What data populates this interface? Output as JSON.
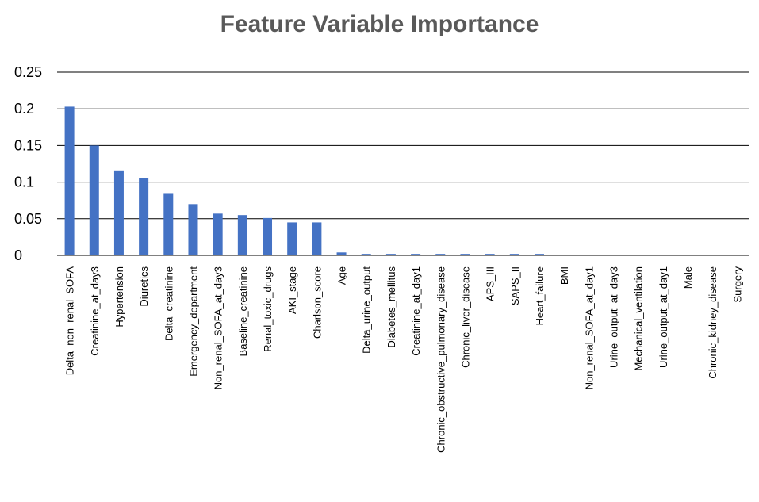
{
  "chart_data": {
    "type": "bar",
    "title": "Feature Variable Importance",
    "xlabel": "",
    "ylabel": "",
    "ylim": [
      0,
      0.25
    ],
    "yticks": [
      "0",
      "0.05",
      "0.1",
      "0.15",
      "0.2",
      "0.25"
    ],
    "grid": true,
    "legend": "none",
    "bar_color": "#4472C4",
    "categories": [
      "Delta_non_renal_SOFA",
      "Creatinine_at_day3",
      "Hypertension",
      "Diuretics",
      "Delta_creatinine",
      "Emergency_department",
      "Non_renal_SOFA_at_day3",
      "Baseline_creatinine",
      "Renal_toxic_drugs",
      "AKI_stage",
      "Charlson_score",
      "Age",
      "Delta_urine_output",
      "Diabetes_mellitus",
      "Creatinine_at_day1",
      "Chronic_obstructive_pulmonary_disease",
      "Chronic_liver_disease",
      "APS_III",
      "SAPS_II",
      "Heart_failure",
      "BMI",
      "Non_renal_SOFA_at_day1",
      "Urine_output_at_day3",
      "Mechanical_ventilation",
      "Urine_output_at_day1",
      "Male",
      "Chronic_kidney_disease",
      "Surgery"
    ],
    "values": [
      0.203,
      0.15,
      0.116,
      0.105,
      0.085,
      0.07,
      0.057,
      0.055,
      0.051,
      0.045,
      0.045,
      0.004,
      0.002,
      0.002,
      0.002,
      0.002,
      0.002,
      0.002,
      0.002,
      0.002,
      0,
      0,
      0,
      0,
      0,
      0,
      0,
      0
    ]
  }
}
